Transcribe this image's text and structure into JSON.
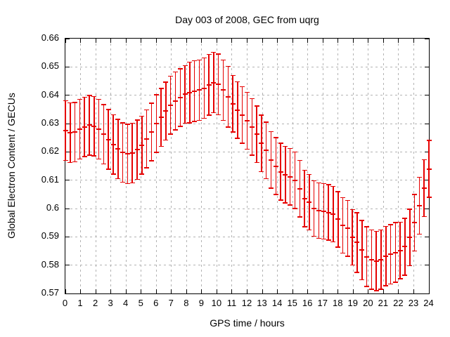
{
  "title": "Day 003 of 2008, GEC from uqrg",
  "axes": {
    "xlabel": "GPS time / hours",
    "ylabel": "Global Electron Content / GECUs"
  },
  "colors": {
    "series": "#e60000",
    "grid": "#b3b3b3",
    "axis": "#000000",
    "background": "#ffffff",
    "text": "#000000"
  },
  "chart_data": {
    "type": "scatter",
    "errorbars": true,
    "title": "Day 003 of 2008, GEC from uqrg",
    "xlabel": "GPS time / hours",
    "ylabel": "Global Electron Content / GECUs",
    "xlim": [
      0,
      24
    ],
    "ylim": [
      0.57,
      0.66
    ],
    "grid": true,
    "legend": "none",
    "xticks": [
      0,
      1,
      2,
      3,
      4,
      5,
      6,
      7,
      8,
      9,
      10,
      11,
      12,
      13,
      14,
      15,
      16,
      17,
      18,
      19,
      20,
      21,
      22,
      23,
      24
    ],
    "xtick_labels": [
      "0",
      "1",
      "2",
      "3",
      "4",
      "5",
      "6",
      "7",
      "8",
      "9",
      "10",
      "11",
      "12",
      "13",
      "14",
      "15",
      "16",
      "17",
      "18",
      "19",
      "20",
      "21",
      "22",
      "23",
      "24"
    ],
    "yticks": [
      0.66,
      0.65,
      0.64,
      0.63,
      0.62,
      0.61,
      0.6,
      0.59,
      0.58,
      0.57
    ],
    "ytick_labels": [
      "0.66",
      "0.65",
      "0.64",
      "0.63",
      "0.62",
      "0.61",
      "0.6",
      "0.59",
      "0.58",
      "0.57"
    ],
    "series": [
      {
        "name": "GEC from uqrg",
        "color": "#e60000",
        "x": [
          0,
          0.316,
          0.632,
          0.947,
          1.263,
          1.579,
          1.895,
          2.211,
          2.526,
          2.842,
          3.158,
          3.474,
          3.789,
          4.105,
          4.421,
          4.737,
          5.053,
          5.368,
          5.684,
          6,
          6.316,
          6.632,
          6.947,
          7.263,
          7.579,
          7.895,
          8.211,
          8.526,
          8.842,
          9.158,
          9.474,
          9.789,
          10.105,
          10.421,
          10.737,
          11.053,
          11.368,
          11.684,
          12,
          12.316,
          12.632,
          12.947,
          13.263,
          13.579,
          13.895,
          14.211,
          14.526,
          14.842,
          15.158,
          15.474,
          15.789,
          16.105,
          16.421,
          16.737,
          17.053,
          17.368,
          17.684,
          18,
          18.316,
          18.632,
          18.947,
          19.263,
          19.579,
          19.895,
          20.211,
          20.526,
          20.842,
          21.158,
          21.474,
          21.789,
          22.105,
          22.421,
          22.737,
          23.053,
          23.368,
          23.684,
          24
        ],
        "y": [
          0.6275,
          0.6268,
          0.627,
          0.628,
          0.6288,
          0.6294,
          0.6291,
          0.628,
          0.6262,
          0.6244,
          0.6226,
          0.621,
          0.6198,
          0.6193,
          0.6196,
          0.6208,
          0.6224,
          0.6246,
          0.627,
          0.63,
          0.6322,
          0.6344,
          0.6365,
          0.638,
          0.6392,
          0.6403,
          0.641,
          0.6415,
          0.6418,
          0.6425,
          0.6437,
          0.6445,
          0.6438,
          0.6418,
          0.6395,
          0.637,
          0.6348,
          0.633,
          0.631,
          0.6288,
          0.6262,
          0.623,
          0.6205,
          0.6172,
          0.615,
          0.613,
          0.612,
          0.6112,
          0.61,
          0.607,
          0.6035,
          0.6022,
          0.6,
          0.5993,
          0.599,
          0.5986,
          0.598,
          0.5962,
          0.594,
          0.593,
          0.5898,
          0.588,
          0.5853,
          0.583,
          0.582,
          0.5815,
          0.582,
          0.5832,
          0.5838,
          0.5845,
          0.5852,
          0.5865,
          0.5898,
          0.595,
          0.601,
          0.6072,
          0.614
        ],
        "yerr": [
          0.0105,
          0.0105,
          0.0105,
          0.0105,
          0.0105,
          0.0105,
          0.0105,
          0.0105,
          0.0105,
          0.0105,
          0.0105,
          0.0105,
          0.0105,
          0.0105,
          0.0105,
          0.0105,
          0.0102,
          0.0102,
          0.0102,
          0.0102,
          0.0102,
          0.0102,
          0.0102,
          0.0102,
          0.0102,
          0.0102,
          0.0107,
          0.0107,
          0.0107,
          0.0107,
          0.0107,
          0.0107,
          0.0107,
          0.0107,
          0.0107,
          0.01,
          0.01,
          0.01,
          0.01,
          0.01,
          0.01,
          0.01,
          0.01,
          0.01,
          0.01,
          0.01,
          0.01,
          0.01,
          0.01,
          0.01,
          0.01,
          0.0098,
          0.0098,
          0.0098,
          0.0098,
          0.0098,
          0.0098,
          0.0098,
          0.0098,
          0.0098,
          0.0098,
          0.0105,
          0.0105,
          0.0105,
          0.0105,
          0.0105,
          0.0105,
          0.0105,
          0.0105,
          0.0105,
          0.01,
          0.01,
          0.01,
          0.01,
          0.01,
          0.01,
          0.01
        ]
      }
    ]
  }
}
